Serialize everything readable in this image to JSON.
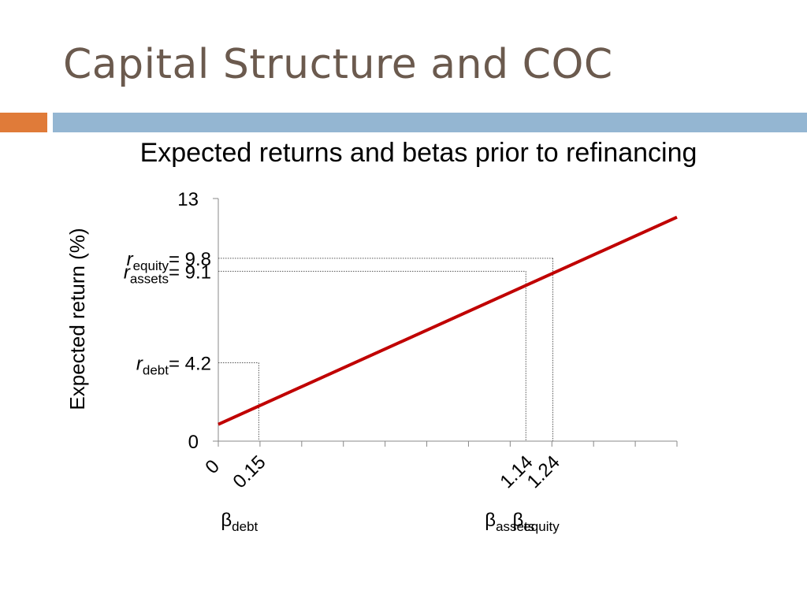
{
  "slide": {
    "title": "Capital Structure and COC",
    "accent_color": "#e07b39",
    "bar_color": "#94b6d2",
    "title_color": "#6b5a4e"
  },
  "chart_data": {
    "type": "line",
    "title": "Expected returns and betas prior to refinancing",
    "ylabel": "Expected return (%)",
    "xlabel": "",
    "ylim": [
      0,
      13
    ],
    "xlim": [
      0,
      1.7
    ],
    "ytick_labels": [
      "0",
      "13"
    ],
    "line_color": "#c00000",
    "series": [
      {
        "x": [
          0,
          1.7
        ],
        "y": [
          0.9,
          12.0
        ]
      }
    ],
    "markers": [
      {
        "beta_label": "0.15",
        "beta": 0.15,
        "rate": 4.2,
        "r_sub": "debt",
        "beta_sub": "debt",
        "rate_label": "= 4.2"
      },
      {
        "beta_label": "1.14",
        "beta": 1.14,
        "rate": 9.1,
        "r_sub": "assets",
        "beta_sub": "assets",
        "rate_label": "= 9.1"
      },
      {
        "beta_label": "1.24",
        "beta": 1.24,
        "rate": 9.8,
        "r_sub": "equity",
        "beta_sub": "equity",
        "rate_label": "= 9.8"
      }
    ],
    "x_origin_label": "0",
    "r_symbol": "r",
    "beta_symbol": "β"
  }
}
